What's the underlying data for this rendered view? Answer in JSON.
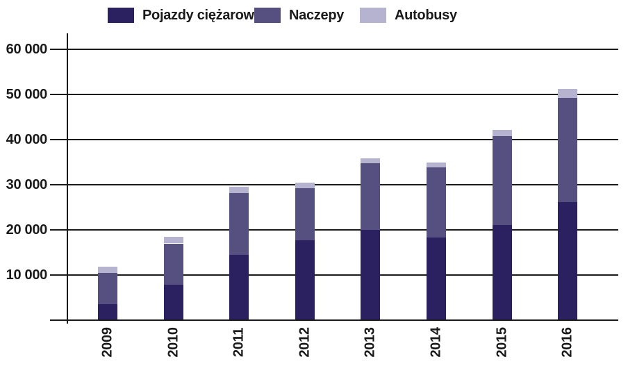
{
  "chart_data": {
    "type": "bar",
    "stacked": true,
    "title": "",
    "xlabel": "",
    "ylabel": "",
    "categories": [
      "2009",
      "2010",
      "2011",
      "2012",
      "2013",
      "2014",
      "2015",
      "2016"
    ],
    "series": [
      {
        "name": "Pojazdy ciężarowe",
        "color": "#2b2161",
        "values": [
          3500,
          7800,
          14500,
          17700,
          20000,
          18300,
          21100,
          26100
        ]
      },
      {
        "name": "Naczepy",
        "color": "#555080",
        "values": [
          6900,
          9200,
          13700,
          11600,
          14700,
          15600,
          19700,
          23100
        ]
      },
      {
        "name": "Autobusy",
        "color": "#b6b3d0",
        "values": [
          1500,
          1400,
          1300,
          1200,
          1200,
          1100,
          1400,
          2000
        ]
      }
    ],
    "totals": [
      11900,
      18400,
      29500,
      30500,
      35900,
      35000,
      42200,
      51200
    ],
    "ylim": [
      0,
      60000
    ],
    "ytick_step": 10000,
    "ytick_labels": [
      "10 000",
      "20 000",
      "30 000",
      "40 000",
      "50 000",
      "60 000"
    ],
    "grid": true,
    "legend_position": "top",
    "axis_color": "#1a1a1a",
    "background_color": "#ffffff"
  }
}
